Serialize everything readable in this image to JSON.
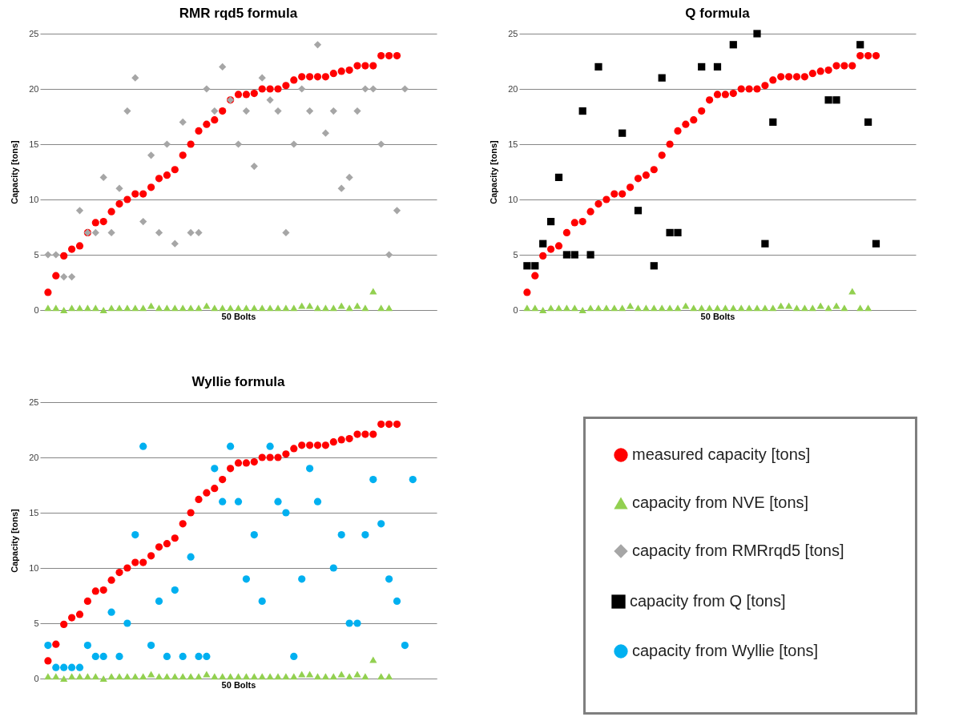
{
  "chart_data": [
    {
      "type": "scatter",
      "title": "RMR rqd5 formula",
      "xlabel": "50 Bolts",
      "ylabel": "Capacity [tons]",
      "categories": [
        null,
        null,
        null,
        null,
        null,
        null,
        null,
        null,
        null,
        null,
        null,
        null,
        null,
        null,
        null,
        null,
        null,
        null,
        null,
        null,
        null,
        null,
        null,
        null,
        null,
        null,
        null,
        null,
        null,
        null,
        null,
        null,
        null,
        null,
        null,
        null,
        null,
        null,
        null,
        null,
        null,
        null,
        null,
        null,
        null,
        null,
        null,
        null,
        null,
        null
      ],
      "ylim": [
        0,
        25
      ],
      "yticks": [
        0,
        5,
        10,
        15,
        20,
        25
      ],
      "grid": "y",
      "legend": "bottom right",
      "series": [
        {
          "name": "measured capacity [tons]",
          "color": "#ff0000",
          "marker": "circle",
          "values": [
            1.6,
            3.1,
            4.9,
            5.5,
            5.8,
            7.0,
            7.9,
            8.0,
            8.9,
            9.6,
            10.0,
            10.5,
            10.5,
            11.1,
            11.9,
            12.2,
            12.7,
            14.0,
            15.0,
            16.2,
            16.8,
            17.2,
            18.0,
            19.0,
            19.5,
            19.5,
            19.6,
            20.0,
            20.0,
            20.0,
            20.3,
            20.8,
            21.1,
            21.1,
            21.1,
            21.1,
            21.4,
            21.6,
            21.7,
            22.1,
            22.1,
            22.1,
            23.0,
            23.0,
            23.0,
            null,
            null,
            null,
            null,
            null
          ]
        },
        {
          "name": "capacity from NVE [tons]",
          "color": "#92d050",
          "marker": "triangle",
          "values": [
            0.2,
            0.2,
            0,
            0.2,
            0.2,
            0.2,
            0.2,
            0,
            0.2,
            0.2,
            0.2,
            0.2,
            0.2,
            0.4,
            0.2,
            0.2,
            0.2,
            0.2,
            0.2,
            0.2,
            0.4,
            0.2,
            0.2,
            0.2,
            0.2,
            0.2,
            0.2,
            0.2,
            0.2,
            0.2,
            0.2,
            0.2,
            0.4,
            0.4,
            0.2,
            0.2,
            0.2,
            0.4,
            0.2,
            0.4,
            0.2,
            1.7,
            0.2,
            0.2,
            null,
            null,
            null,
            null,
            null,
            null
          ]
        },
        {
          "name": "capacity from RMRrqd5 [tons]",
          "color": "#a6a6a6",
          "marker": "diamond",
          "values": [
            5,
            5,
            3,
            3,
            9,
            7,
            7,
            12,
            7,
            11,
            18,
            21,
            8,
            14,
            7,
            15,
            6,
            17,
            7,
            7,
            20,
            18,
            22,
            19,
            15,
            18,
            13,
            21,
            19,
            18,
            7,
            15,
            20,
            18,
            24,
            16,
            18,
            11,
            12,
            18,
            20,
            20,
            15,
            5,
            9,
            20,
            null,
            null,
            null,
            null
          ]
        }
      ]
    },
    {
      "type": "scatter",
      "title": "Q formula",
      "xlabel": "50 Bolts",
      "ylabel": "Capacity [tons]",
      "categories": [
        null,
        null,
        null,
        null,
        null,
        null,
        null,
        null,
        null,
        null,
        null,
        null,
        null,
        null,
        null,
        null,
        null,
        null,
        null,
        null,
        null,
        null,
        null,
        null,
        null,
        null,
        null,
        null,
        null,
        null,
        null,
        null,
        null,
        null,
        null,
        null,
        null,
        null,
        null,
        null,
        null,
        null,
        null,
        null,
        null,
        null,
        null,
        null,
        null,
        null
      ],
      "ylim": [
        0,
        25
      ],
      "yticks": [
        0,
        5,
        10,
        15,
        20,
        25
      ],
      "grid": "y",
      "legend": "bottom",
      "series": [
        {
          "color": "#ff0000",
          "marker": "circle",
          "values": [
            1.6,
            3.1,
            4.9,
            5.5,
            5.8,
            7.0,
            7.9,
            8.0,
            8.9,
            9.6,
            10.0,
            10.5,
            10.5,
            11.1,
            11.9,
            12.2,
            12.7,
            14.0,
            15.0,
            16.2,
            16.8,
            17.2,
            18.0,
            19.0,
            19.5,
            19.5,
            19.6,
            20.0,
            20.0,
            20.0,
            20.3,
            20.8,
            21.1,
            21.1,
            21.1,
            21.1,
            21.4,
            21.6,
            21.7,
            22.1,
            22.1,
            22.1,
            23.0,
            23.0,
            23.0,
            null,
            null,
            null,
            null,
            null
          ]
        },
        {
          "color": "#92d050",
          "marker": "triangle",
          "values": [
            0.2,
            0.2,
            0,
            0.2,
            0.2,
            0.2,
            0.2,
            0,
            0.2,
            0.2,
            0.2,
            0.2,
            0.2,
            0.4,
            0.2,
            0.2,
            0.2,
            0.2,
            0.2,
            0.2,
            0.4,
            0.2,
            0.2,
            0.2,
            0.2,
            0.2,
            0.2,
            0.2,
            0.2,
            0.2,
            0.2,
            0.2,
            0.4,
            0.4,
            0.2,
            0.2,
            0.2,
            0.4,
            0.2,
            0.4,
            0.2,
            1.7,
            0.2,
            0.2,
            null,
            null,
            null,
            null,
            null,
            null
          ]
        },
        {
          "name": "capacity from Q [tons]",
          "color": "#000000",
          "marker": "square",
          "values": [
            4,
            4,
            6,
            8,
            12,
            5,
            5,
            18,
            5,
            22,
            null,
            null,
            16,
            null,
            9,
            null,
            4,
            21,
            7,
            7,
            null,
            null,
            22,
            null,
            22,
            null,
            24,
            null,
            null,
            25,
            6,
            17,
            null,
            null,
            null,
            null,
            null,
            null,
            19,
            19,
            null,
            null,
            24,
            17,
            6,
            null,
            null,
            null,
            null,
            null
          ]
        }
      ]
    },
    {
      "type": "scatter",
      "title": "Wyllie formula",
      "xlabel": "50 Bolts",
      "ylabel": "Capacity [tons]",
      "categories": [
        null,
        null,
        null,
        null,
        null,
        null,
        null,
        null,
        null,
        null,
        null,
        null,
        null,
        null,
        null,
        null,
        null,
        null,
        null,
        null,
        null,
        null,
        null,
        null,
        null,
        null,
        null,
        null,
        null,
        null,
        null,
        null,
        null,
        null,
        null,
        null,
        null,
        null,
        null,
        null,
        null,
        null,
        null,
        null,
        null,
        null,
        null,
        null,
        null,
        null
      ],
      "ylim": [
        0,
        25
      ],
      "yticks": [
        0,
        5,
        10,
        15,
        20,
        25
      ],
      "grid": "y",
      "legend": "right",
      "series": [
        {
          "color": "#ff0000",
          "marker": "circle",
          "values": [
            1.6,
            3.1,
            4.9,
            5.5,
            5.8,
            7.0,
            7.9,
            8.0,
            8.9,
            9.6,
            10.0,
            10.5,
            10.5,
            11.1,
            11.9,
            12.2,
            12.7,
            14.0,
            15.0,
            16.2,
            16.8,
            17.2,
            18.0,
            19.0,
            19.5,
            19.5,
            19.6,
            20.0,
            20.0,
            20.0,
            20.3,
            20.8,
            21.1,
            21.1,
            21.1,
            21.1,
            21.4,
            21.6,
            21.7,
            22.1,
            22.1,
            22.1,
            23.0,
            23.0,
            23.0,
            null,
            null,
            null,
            null,
            null
          ]
        },
        {
          "color": "#92d050",
          "marker": "triangle",
          "values": [
            0.2,
            0.2,
            0,
            0.2,
            0.2,
            0.2,
            0.2,
            0,
            0.2,
            0.2,
            0.2,
            0.2,
            0.2,
            0.4,
            0.2,
            0.2,
            0.2,
            0.2,
            0.2,
            0.2,
            0.4,
            0.2,
            0.2,
            0.2,
            0.2,
            0.2,
            0.2,
            0.2,
            0.2,
            0.2,
            0.2,
            0.2,
            0.4,
            0.4,
            0.2,
            0.2,
            0.2,
            0.4,
            0.2,
            0.4,
            0.2,
            1.7,
            0.2,
            0.2,
            null,
            null,
            null,
            null,
            null,
            null
          ]
        },
        {
          "name": "capacity from Wyllie [tons]",
          "color": "#00b0f0",
          "marker": "circle",
          "values": [
            3,
            1,
            1,
            1,
            1,
            3,
            2,
            2,
            6,
            2,
            5,
            13,
            21,
            3,
            7,
            2,
            8,
            2,
            11,
            2,
            2,
            19,
            16,
            21,
            16,
            9,
            13,
            7,
            21,
            16,
            15,
            2,
            9,
            19,
            16,
            null,
            10,
            13,
            5,
            5,
            13,
            18,
            14,
            9,
            7,
            3,
            18,
            null,
            null,
            null
          ]
        }
      ]
    }
  ]
}
